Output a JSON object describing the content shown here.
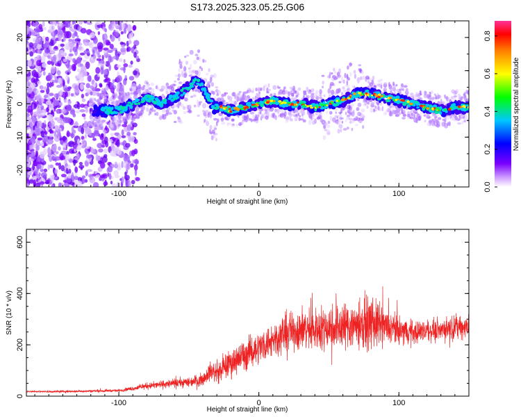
{
  "chart_data": [
    {
      "type": "heatmap",
      "title": "S173.2025.323.05.25.G06",
      "xlabel": "Height of straight line (km)",
      "ylabel": "Frequency (Hz)",
      "xlim": [
        -166,
        150
      ],
      "ylim": [
        -25,
        25
      ],
      "xticks": [
        -100,
        0,
        100
      ],
      "yticks": [
        -20,
        -10,
        0,
        10,
        20
      ],
      "colorbar": {
        "label": "Normalized spectral amplitude",
        "range": [
          0,
          0.88
        ],
        "ticks": [
          0.0,
          0.2,
          0.4,
          0.6,
          0.8
        ]
      },
      "doppler_trace": {
        "x": [
          -115,
          -100,
          -90,
          -80,
          -70,
          -60,
          -50,
          -45,
          -40,
          -35,
          -32,
          -25,
          -20,
          -10,
          0,
          10,
          20,
          30,
          40,
          50,
          60,
          70,
          80,
          90,
          100,
          110,
          120,
          130,
          140,
          150
        ],
        "y": [
          -2,
          -2,
          0,
          2,
          0,
          2,
          5,
          7,
          5,
          1,
          -1,
          -1,
          -2,
          -1,
          0,
          1,
          0,
          0,
          -1,
          0,
          1,
          3,
          3,
          2,
          1,
          0,
          -1,
          -2,
          -1,
          -1
        ]
      }
    },
    {
      "type": "line",
      "xlabel": "Height of straight line (km)",
      "ylabel": "SNR (10 * v/v)",
      "xlim": [
        -166,
        150
      ],
      "ylim": [
        0,
        650
      ],
      "xticks": [
        -100,
        0,
        100
      ],
      "yticks": [
        0,
        200,
        400,
        600
      ],
      "color": "#ee2222",
      "envelope": {
        "x": [
          -166,
          -140,
          -120,
          -100,
          -90,
          -80,
          -70,
          -60,
          -50,
          -40,
          -35,
          -30,
          -25,
          -20,
          -10,
          0,
          10,
          20,
          30,
          40,
          50,
          60,
          70,
          80,
          90,
          100,
          110,
          120,
          130,
          140,
          150
        ],
        "mean": [
          18,
          18,
          20,
          22,
          30,
          40,
          45,
          50,
          55,
          65,
          100,
          90,
          110,
          130,
          160,
          190,
          220,
          250,
          260,
          260,
          270,
          275,
          280,
          285,
          270,
          255,
          250,
          255,
          260,
          270,
          270
        ],
        "amplitude": [
          5,
          6,
          7,
          8,
          12,
          18,
          22,
          25,
          30,
          35,
          50,
          60,
          70,
          80,
          90,
          90,
          100,
          110,
          120,
          120,
          130,
          140,
          140,
          150,
          110,
          80,
          70,
          60,
          60,
          70,
          70
        ]
      }
    }
  ]
}
